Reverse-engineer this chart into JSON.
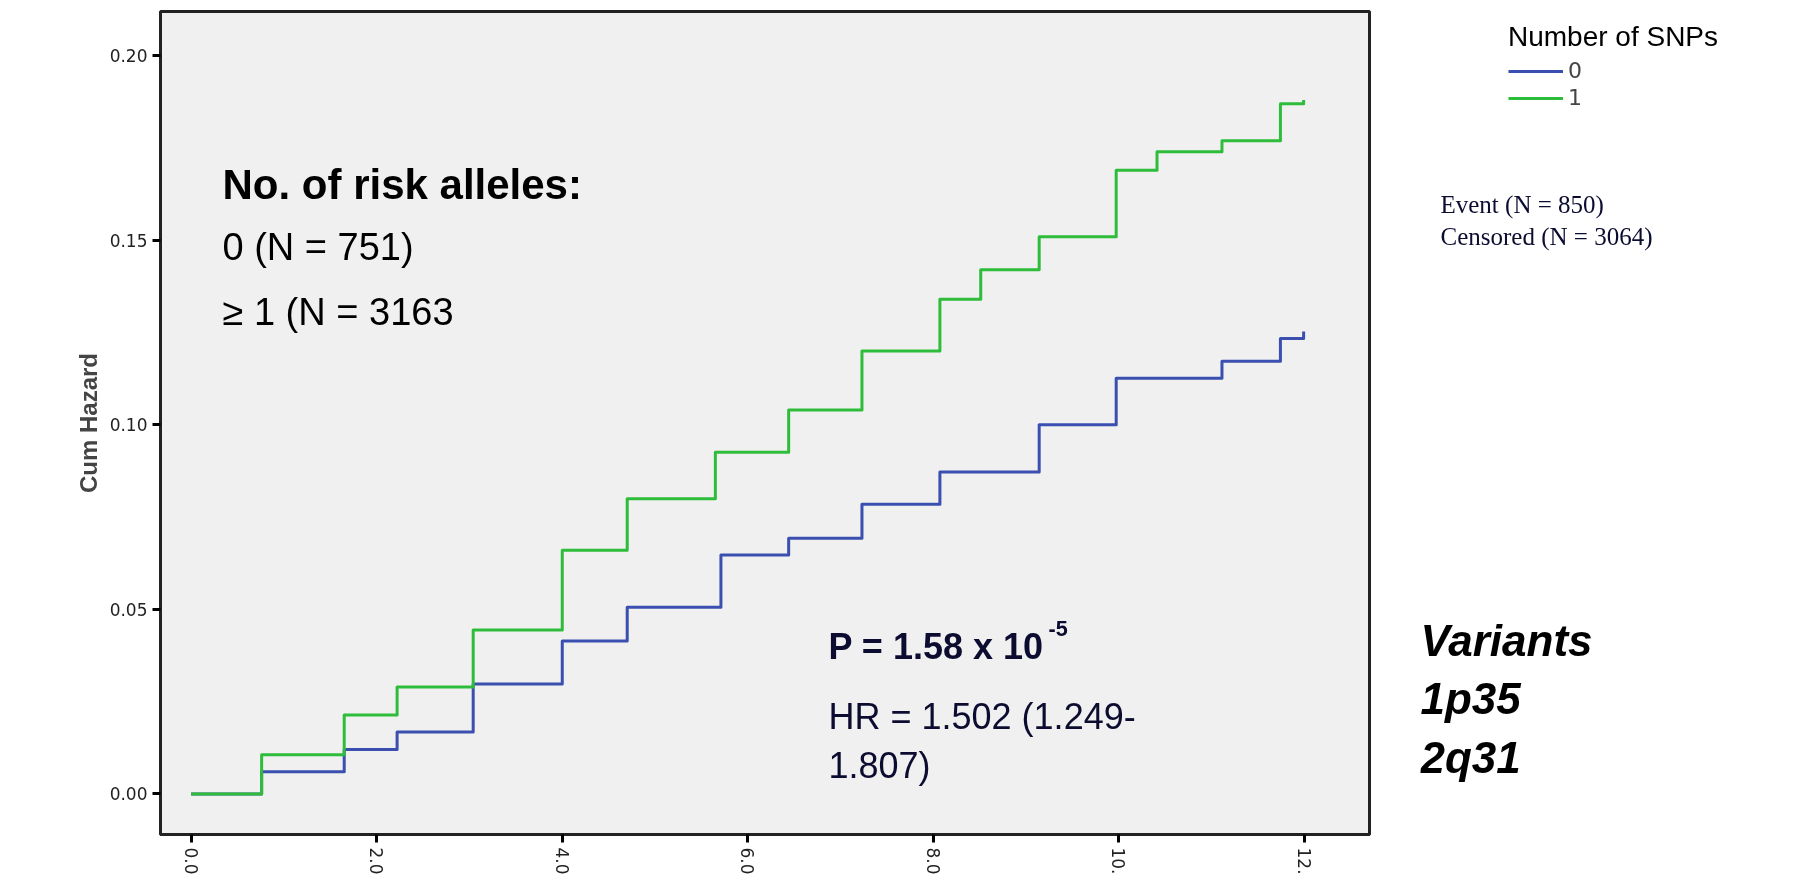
{
  "chart_data": {
    "type": "step",
    "ylabel": "Cum Hazard",
    "legend_title": "Number of SNPs",
    "legend": "top right",
    "grid": false,
    "marker": "none",
    "line_style": "solid",
    "xlim": [
      -0.33,
      12.7
    ],
    "ylim": [
      -0.011,
      0.212
    ],
    "xticks": [
      {
        "value": 0,
        "label": "0.0"
      },
      {
        "value": 2,
        "label": "2.0"
      },
      {
        "value": 4,
        "label": "4.0"
      },
      {
        "value": 6,
        "label": "6.0"
      },
      {
        "value": 8,
        "label": "8.0"
      },
      {
        "value": 10,
        "label": "10."
      },
      {
        "value": 12,
        "label": "12."
      }
    ],
    "yticks": [
      {
        "value": 0,
        "label": "0.00"
      },
      {
        "value": 0.05,
        "label": "0.05"
      },
      {
        "value": 0.1,
        "label": "0.10"
      },
      {
        "value": 0.15,
        "label": "0.15"
      },
      {
        "value": 0.2,
        "label": "0.20"
      }
    ],
    "series": [
      {
        "name": "0",
        "color": "#3a4fb0",
        "x": [
          0,
          0.76,
          1.65,
          2.22,
          3.04,
          4.0,
          4.7,
          5.71,
          6.44,
          7.23,
          8.07,
          9.14,
          9.97,
          11.11,
          11.74,
          11.99
        ],
        "values": [
          0,
          0.006,
          0.012,
          0.0168,
          0.0298,
          0.0414,
          0.0506,
          0.0647,
          0.0693,
          0.0785,
          0.0872,
          0.1,
          0.1126,
          0.1172,
          0.1234,
          0.1253
        ]
      },
      {
        "name": "1",
        "color": "#2ebd3a",
        "x": [
          0,
          0.76,
          1.65,
          2.22,
          3.04,
          4.0,
          4.7,
          5.65,
          6.44,
          7.23,
          8.07,
          8.51,
          9.14,
          9.97,
          10.41,
          11.11,
          11.74,
          11.99
        ],
        "values": [
          0,
          0.0106,
          0.0214,
          0.029,
          0.0444,
          0.066,
          0.08,
          0.0926,
          0.104,
          0.12,
          0.134,
          0.142,
          0.151,
          0.169,
          0.174,
          0.177,
          0.187,
          0.188
        ]
      }
    ],
    "annotations": [
      "No. of risk alleles:",
      "0    (N = 751)",
      "≥ 1  (N = 3163",
      "P = 1.58 x 10$^{-5}$",
      "HR = 1.502 (1.249-\n1.807)",
      "Event (N = 850)\nCensored (N = 3064)",
      "Variants\n1p35\n2q31"
    ]
  }
}
